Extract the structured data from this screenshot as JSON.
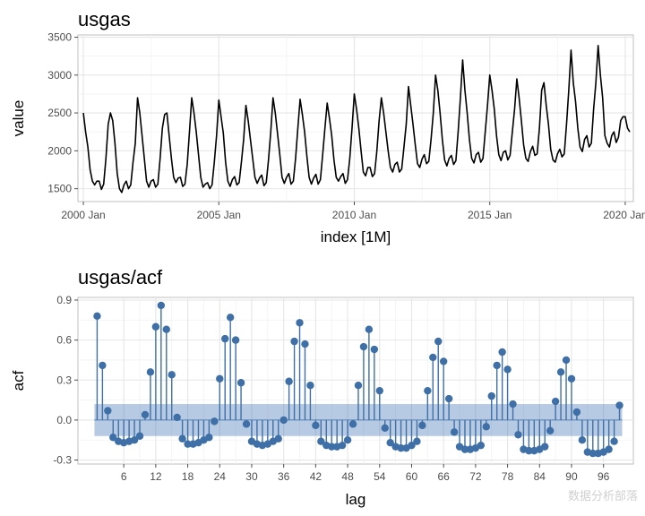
{
  "chart_data": [
    {
      "type": "line",
      "title": "usgas",
      "xlabel": "index [1M]",
      "ylabel": "value",
      "xlim": [
        1999.8,
        2020.3
      ],
      "ylim": [
        1330,
        3530
      ],
      "x_ticks": [
        {
          "value": 2000,
          "label": "2000 Jan"
        },
        {
          "value": 2005,
          "label": "2005 Jan"
        },
        {
          "value": 2010,
          "label": "2010 Jan"
        },
        {
          "value": 2015,
          "label": "2015 Jan"
        },
        {
          "value": 2020,
          "label": "2020 Jan"
        }
      ],
      "y_ticks": [
        1500,
        2000,
        2500,
        3000,
        3500
      ],
      "start": "2000 Jan",
      "values": [
        2500,
        2250,
        2050,
        1750,
        1600,
        1550,
        1600,
        1600,
        1490,
        1560,
        1900,
        2350,
        2500,
        2400,
        2100,
        1700,
        1500,
        1450,
        1550,
        1600,
        1500,
        1550,
        1850,
        2100,
        2700,
        2500,
        2200,
        1900,
        1600,
        1520,
        1600,
        1620,
        1520,
        1560,
        1900,
        2300,
        2480,
        2500,
        2200,
        1900,
        1650,
        1580,
        1640,
        1650,
        1530,
        1560,
        1820,
        2250,
        2700,
        2500,
        2250,
        1950,
        1650,
        1520,
        1560,
        1580,
        1500,
        1550,
        1850,
        2200,
        2670,
        2450,
        2230,
        1850,
        1600,
        1530,
        1620,
        1660,
        1550,
        1580,
        1850,
        2150,
        2600,
        2400,
        2150,
        1900,
        1650,
        1570,
        1640,
        1680,
        1540,
        1580,
        1880,
        2250,
        2700,
        2500,
        2230,
        1950,
        1650,
        1570,
        1650,
        1700,
        1560,
        1600,
        1900,
        2300,
        2680,
        2480,
        2250,
        1930,
        1650,
        1560,
        1640,
        1690,
        1560,
        1620,
        1950,
        2300,
        2630,
        2430,
        2200,
        1880,
        1650,
        1600,
        1660,
        1700,
        1570,
        1620,
        1900,
        2300,
        2750,
        2550,
        2300,
        2000,
        1720,
        1670,
        1780,
        1780,
        1660,
        1700,
        2000,
        2400,
        2700,
        2500,
        2250,
        2000,
        1780,
        1720,
        1820,
        1850,
        1720,
        1760,
        2050,
        2350,
        2850,
        2600,
        2350,
        2080,
        1830,
        1780,
        1890,
        1950,
        1830,
        1860,
        2150,
        2500,
        3000,
        2800,
        2500,
        2150,
        1880,
        1800,
        1900,
        1940,
        1820,
        1870,
        2250,
        2700,
        3200,
        2800,
        2500,
        2150,
        1900,
        1840,
        1950,
        1980,
        1850,
        1900,
        2250,
        2600,
        3000,
        2800,
        2550,
        2200,
        1950,
        1870,
        1980,
        2000,
        1880,
        1940,
        2250,
        2550,
        2950,
        2700,
        2400,
        2080,
        1900,
        1860,
        1990,
        2060,
        1940,
        1960,
        2300,
        2800,
        2900,
        2600,
        2350,
        2020,
        1880,
        1850,
        1960,
        2020,
        1920,
        1960,
        2350,
        2800,
        3330,
        2900,
        2650,
        2300,
        2050,
        1990,
        2150,
        2200,
        2050,
        2100,
        2550,
        2900,
        3390,
        3000,
        2700,
        2200,
        2100,
        2050,
        2200,
        2250,
        2110,
        2180,
        2400,
        2450,
        2450,
        2300,
        2250
      ]
    },
    {
      "type": "lollipop",
      "title": "usgas/acf",
      "xlabel": "lag",
      "ylabel": "acf",
      "xlim": [
        -2.6,
        101.6
      ],
      "ylim": [
        -0.33,
        0.92
      ],
      "confidence_band": 0.12,
      "x_ticks": [
        6,
        12,
        18,
        24,
        30,
        36,
        42,
        48,
        54,
        60,
        66,
        72,
        78,
        84,
        90,
        96
      ],
      "y_ticks": [
        -0.3,
        0.0,
        0.3,
        0.6,
        0.9
      ],
      "lags": [
        1,
        2,
        3,
        4,
        5,
        6,
        7,
        8,
        9,
        10,
        11,
        12,
        13,
        14,
        15,
        16,
        17,
        18,
        19,
        20,
        21,
        22,
        23,
        24,
        25,
        26,
        27,
        28,
        29,
        30,
        31,
        32,
        33,
        34,
        35,
        36,
        37,
        38,
        39,
        40,
        41,
        42,
        43,
        44,
        45,
        46,
        47,
        48,
        49,
        50,
        51,
        52,
        53,
        54,
        55,
        56,
        57,
        58,
        59,
        60,
        61,
        62,
        63,
        64,
        65,
        66,
        67,
        68,
        69,
        70,
        71,
        72,
        73,
        74,
        75,
        76,
        77,
        78,
        79,
        80,
        81,
        82,
        83,
        84,
        85,
        86,
        87,
        88,
        89,
        90,
        91,
        92,
        93,
        94,
        95,
        96,
        97,
        98,
        99
      ],
      "acf": [
        0.78,
        0.41,
        0.07,
        -0.13,
        -0.16,
        -0.17,
        -0.16,
        -0.15,
        -0.12,
        0.04,
        0.36,
        0.7,
        0.86,
        0.68,
        0.34,
        0.02,
        -0.14,
        -0.18,
        -0.18,
        -0.17,
        -0.15,
        -0.13,
        -0.01,
        0.31,
        0.61,
        0.77,
        0.6,
        0.28,
        -0.03,
        -0.16,
        -0.18,
        -0.19,
        -0.18,
        -0.16,
        -0.14,
        0.0,
        0.29,
        0.59,
        0.73,
        0.57,
        0.26,
        -0.04,
        -0.16,
        -0.19,
        -0.2,
        -0.2,
        -0.19,
        -0.15,
        -0.03,
        0.26,
        0.55,
        0.68,
        0.53,
        0.22,
        -0.06,
        -0.17,
        -0.2,
        -0.21,
        -0.21,
        -0.19,
        -0.16,
        -0.04,
        0.22,
        0.47,
        0.59,
        0.44,
        0.16,
        -0.09,
        -0.2,
        -0.22,
        -0.22,
        -0.21,
        -0.19,
        -0.05,
        0.18,
        0.41,
        0.51,
        0.38,
        0.12,
        -0.11,
        -0.22,
        -0.23,
        -0.23,
        -0.22,
        -0.2,
        -0.08,
        0.14,
        0.36,
        0.45,
        0.31,
        0.06,
        -0.15,
        -0.24,
        -0.25,
        -0.25,
        -0.24,
        -0.22,
        -0.16,
        0.11
      ]
    }
  ],
  "watermark": "数据分析部落"
}
